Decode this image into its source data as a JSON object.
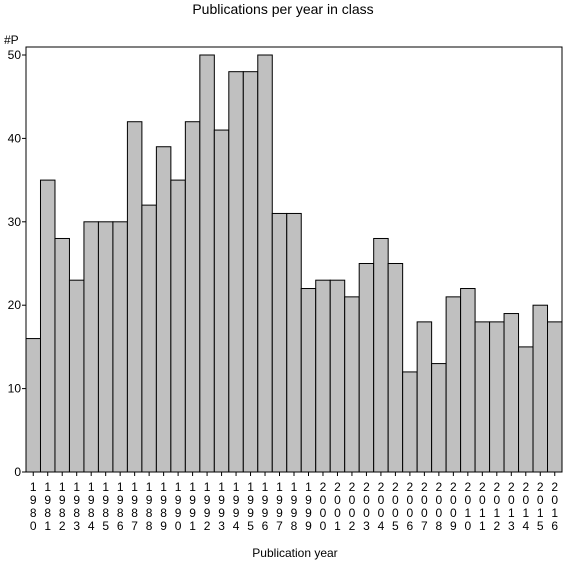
{
  "chart_data": {
    "type": "bar",
    "title": "Publications per year in class",
    "ylabel": "#P",
    "xlabel": "Publication year",
    "ylim": [
      0,
      50
    ],
    "yticks": [
      0,
      10,
      20,
      30,
      40,
      50
    ],
    "grid": false,
    "legend": "none",
    "bar_color": "#c0c0c0",
    "categories": [
      "1980",
      "1981",
      "1982",
      "1983",
      "1984",
      "1985",
      "1986",
      "1987",
      "1988",
      "1989",
      "1990",
      "1991",
      "1992",
      "1993",
      "1994",
      "1995",
      "1996",
      "1997",
      "1998",
      "1999",
      "2000",
      "2001",
      "2002",
      "2003",
      "2004",
      "2005",
      "2006",
      "2007",
      "2008",
      "2009",
      "2010",
      "2011",
      "2012",
      "2013",
      "2014",
      "2015",
      "2016"
    ],
    "values": [
      16,
      35,
      28,
      23,
      30,
      30,
      30,
      42,
      32,
      39,
      35,
      42,
      50,
      41,
      48,
      48,
      50,
      31,
      31,
      22,
      23,
      23,
      21,
      25,
      28,
      25,
      12,
      18,
      13,
      21,
      22,
      18,
      18,
      19,
      15,
      20,
      18
    ]
  }
}
